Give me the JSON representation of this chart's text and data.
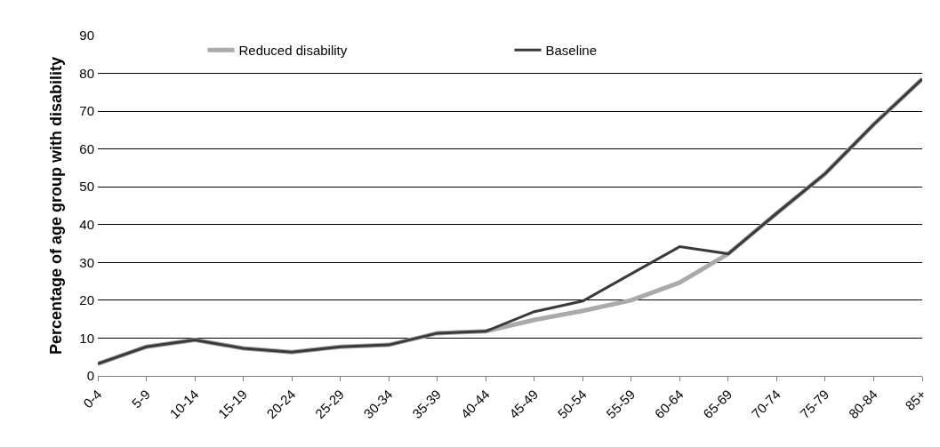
{
  "chart_data": {
    "type": "line",
    "ylabel": "Percentage of age group with disability",
    "categories": [
      "0-4",
      "5-9",
      "10-14",
      "15-19",
      "20-24",
      "25-29",
      "30-34",
      "35-39",
      "40-44",
      "45-49",
      "50-54",
      "55-59",
      "60-64",
      "65-69",
      "70-74",
      "75-79",
      "80-84",
      "85+"
    ],
    "series": [
      {
        "name": "Reduced disability",
        "color": "#aaaaaa",
        "values": [
          3.2,
          7.7,
          9.5,
          7.3,
          6.3,
          7.7,
          8.2,
          11.3,
          11.8,
          14.8,
          17.2,
          20,
          24.7,
          32.3,
          43,
          53.5,
          66.5,
          78.5
        ]
      },
      {
        "name": "Baseline",
        "color": "#3a3a3a",
        "values": [
          3.2,
          7.7,
          9.5,
          7.3,
          6.3,
          7.7,
          8.2,
          11.3,
          11.8,
          17,
          19.8,
          27,
          34.2,
          32.3,
          43,
          53.5,
          66.5,
          78.5
        ]
      }
    ],
    "ylim": [
      0,
      90
    ],
    "yticks": [
      0,
      10,
      20,
      30,
      40,
      50,
      60,
      70,
      80,
      90
    ],
    "grid": "y",
    "legend": "top",
    "marker": "none",
    "line_style": "solid"
  }
}
